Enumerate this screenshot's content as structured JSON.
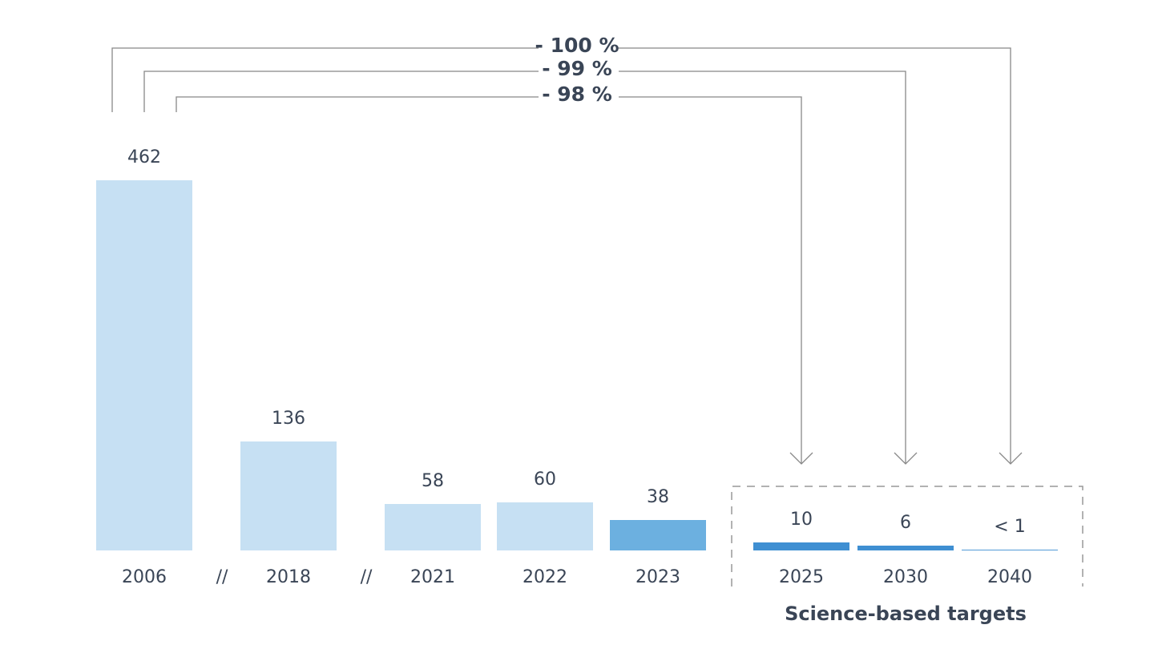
{
  "chart_data": {
    "type": "bar",
    "categories": [
      "2006",
      "2018",
      "2021",
      "2022",
      "2023",
      "2025",
      "2030",
      "2040"
    ],
    "values": [
      462,
      136,
      58,
      60,
      38,
      10,
      6,
      0.9
    ],
    "value_labels": [
      "462",
      "136",
      "58",
      "60",
      "38",
      "10",
      "6",
      "< 1"
    ],
    "colors": [
      "#c6e0f3",
      "#c6e0f3",
      "#c6e0f3",
      "#c6e0f3",
      "#6cb0e0",
      "#3f8fd2",
      "#3f8fd2",
      "#3f8fd2"
    ],
    "breaks": [
      "//",
      "//"
    ],
    "group_label": "Science-based targets",
    "annotations": [
      "- 100 %",
      "- 99 %",
      "- 98 %"
    ]
  }
}
